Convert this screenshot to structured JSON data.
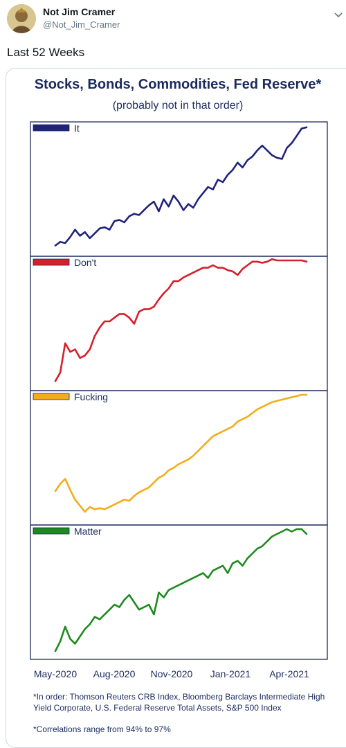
{
  "tweet": {
    "display_name": "Not Jim Cramer",
    "handle": "@Not_Jim_Cramer",
    "text": "Last 52 Weeks",
    "avatar_icon": "avatar-portrait-icon",
    "menu_icon": "chevron-down-icon"
  },
  "chart_data": {
    "type": "line",
    "title": "Stocks, Bonds, Commodities, Fed Reserve*",
    "subtitle": "(probably not in that order)",
    "x_tick_labels": [
      "May-2020",
      "Aug-2020",
      "Nov-2020",
      "Jan-2021",
      "Apr-2021"
    ],
    "value_scale": "normalized 0-100 per panel (no y-axis printed)",
    "grid": false,
    "legend_placement": "top-left of each panel",
    "series": [
      {
        "name": "It",
        "color": "#1f237a",
        "values": [
          2,
          5,
          4,
          9,
          15,
          10,
          13,
          8,
          12,
          16,
          17,
          15,
          22,
          23,
          21,
          26,
          28,
          27,
          31,
          35,
          38,
          30,
          40,
          34,
          43,
          38,
          31,
          36,
          33,
          40,
          45,
          50,
          48,
          56,
          54,
          60,
          64,
          70,
          66,
          72,
          75,
          80,
          84,
          80,
          76,
          74,
          73,
          82,
          86,
          92,
          98,
          99
        ]
      },
      {
        "name": "Don't",
        "color": "#d71e2b",
        "values": [
          1,
          8,
          32,
          25,
          27,
          20,
          22,
          27,
          38,
          45,
          50,
          50,
          53,
          56,
          56,
          53,
          48,
          58,
          60,
          60,
          62,
          68,
          73,
          77,
          83,
          83,
          86,
          88,
          90,
          92,
          94,
          94,
          96,
          94,
          94,
          92,
          91,
          88,
          93,
          96,
          99,
          99,
          98,
          99,
          101,
          100,
          100,
          100,
          100,
          100,
          100,
          99
        ]
      },
      {
        "name": "Fucking",
        "color": "#f2ad1c",
        "values": [
          21,
          27,
          31,
          22,
          14,
          9,
          4,
          8,
          6,
          7,
          6,
          8,
          10,
          12,
          14,
          13,
          17,
          20,
          22,
          24,
          28,
          32,
          34,
          38,
          40,
          43,
          45,
          47,
          50,
          54,
          58,
          62,
          66,
          68,
          70,
          72,
          74,
          78,
          80,
          82,
          85,
          88,
          90,
          92,
          94,
          95,
          96,
          97,
          98,
          99,
          100,
          100
        ]
      },
      {
        "name": "Matter",
        "color": "#1e8a1e",
        "values": [
          0,
          8,
          20,
          10,
          6,
          12,
          18,
          22,
          28,
          26,
          30,
          34,
          38,
          36,
          42,
          46,
          40,
          34,
          36,
          38,
          30,
          48,
          44,
          50,
          52,
          54,
          56,
          58,
          60,
          62,
          64,
          60,
          66,
          68,
          70,
          64,
          72,
          74,
          70,
          76,
          80,
          84,
          86,
          90,
          94,
          96,
          98,
          100,
          98,
          100,
          100,
          96
        ]
      }
    ]
  },
  "footnotes": {
    "sources": "*In order: Thomson Reuters CRB Index, Bloomberg Barclays Intermediate High Yield Corporate, U.S. Federal Reserve Total Assets, S&P 500 Index",
    "correlations": "*Correlations range from 94% to 97%"
  }
}
